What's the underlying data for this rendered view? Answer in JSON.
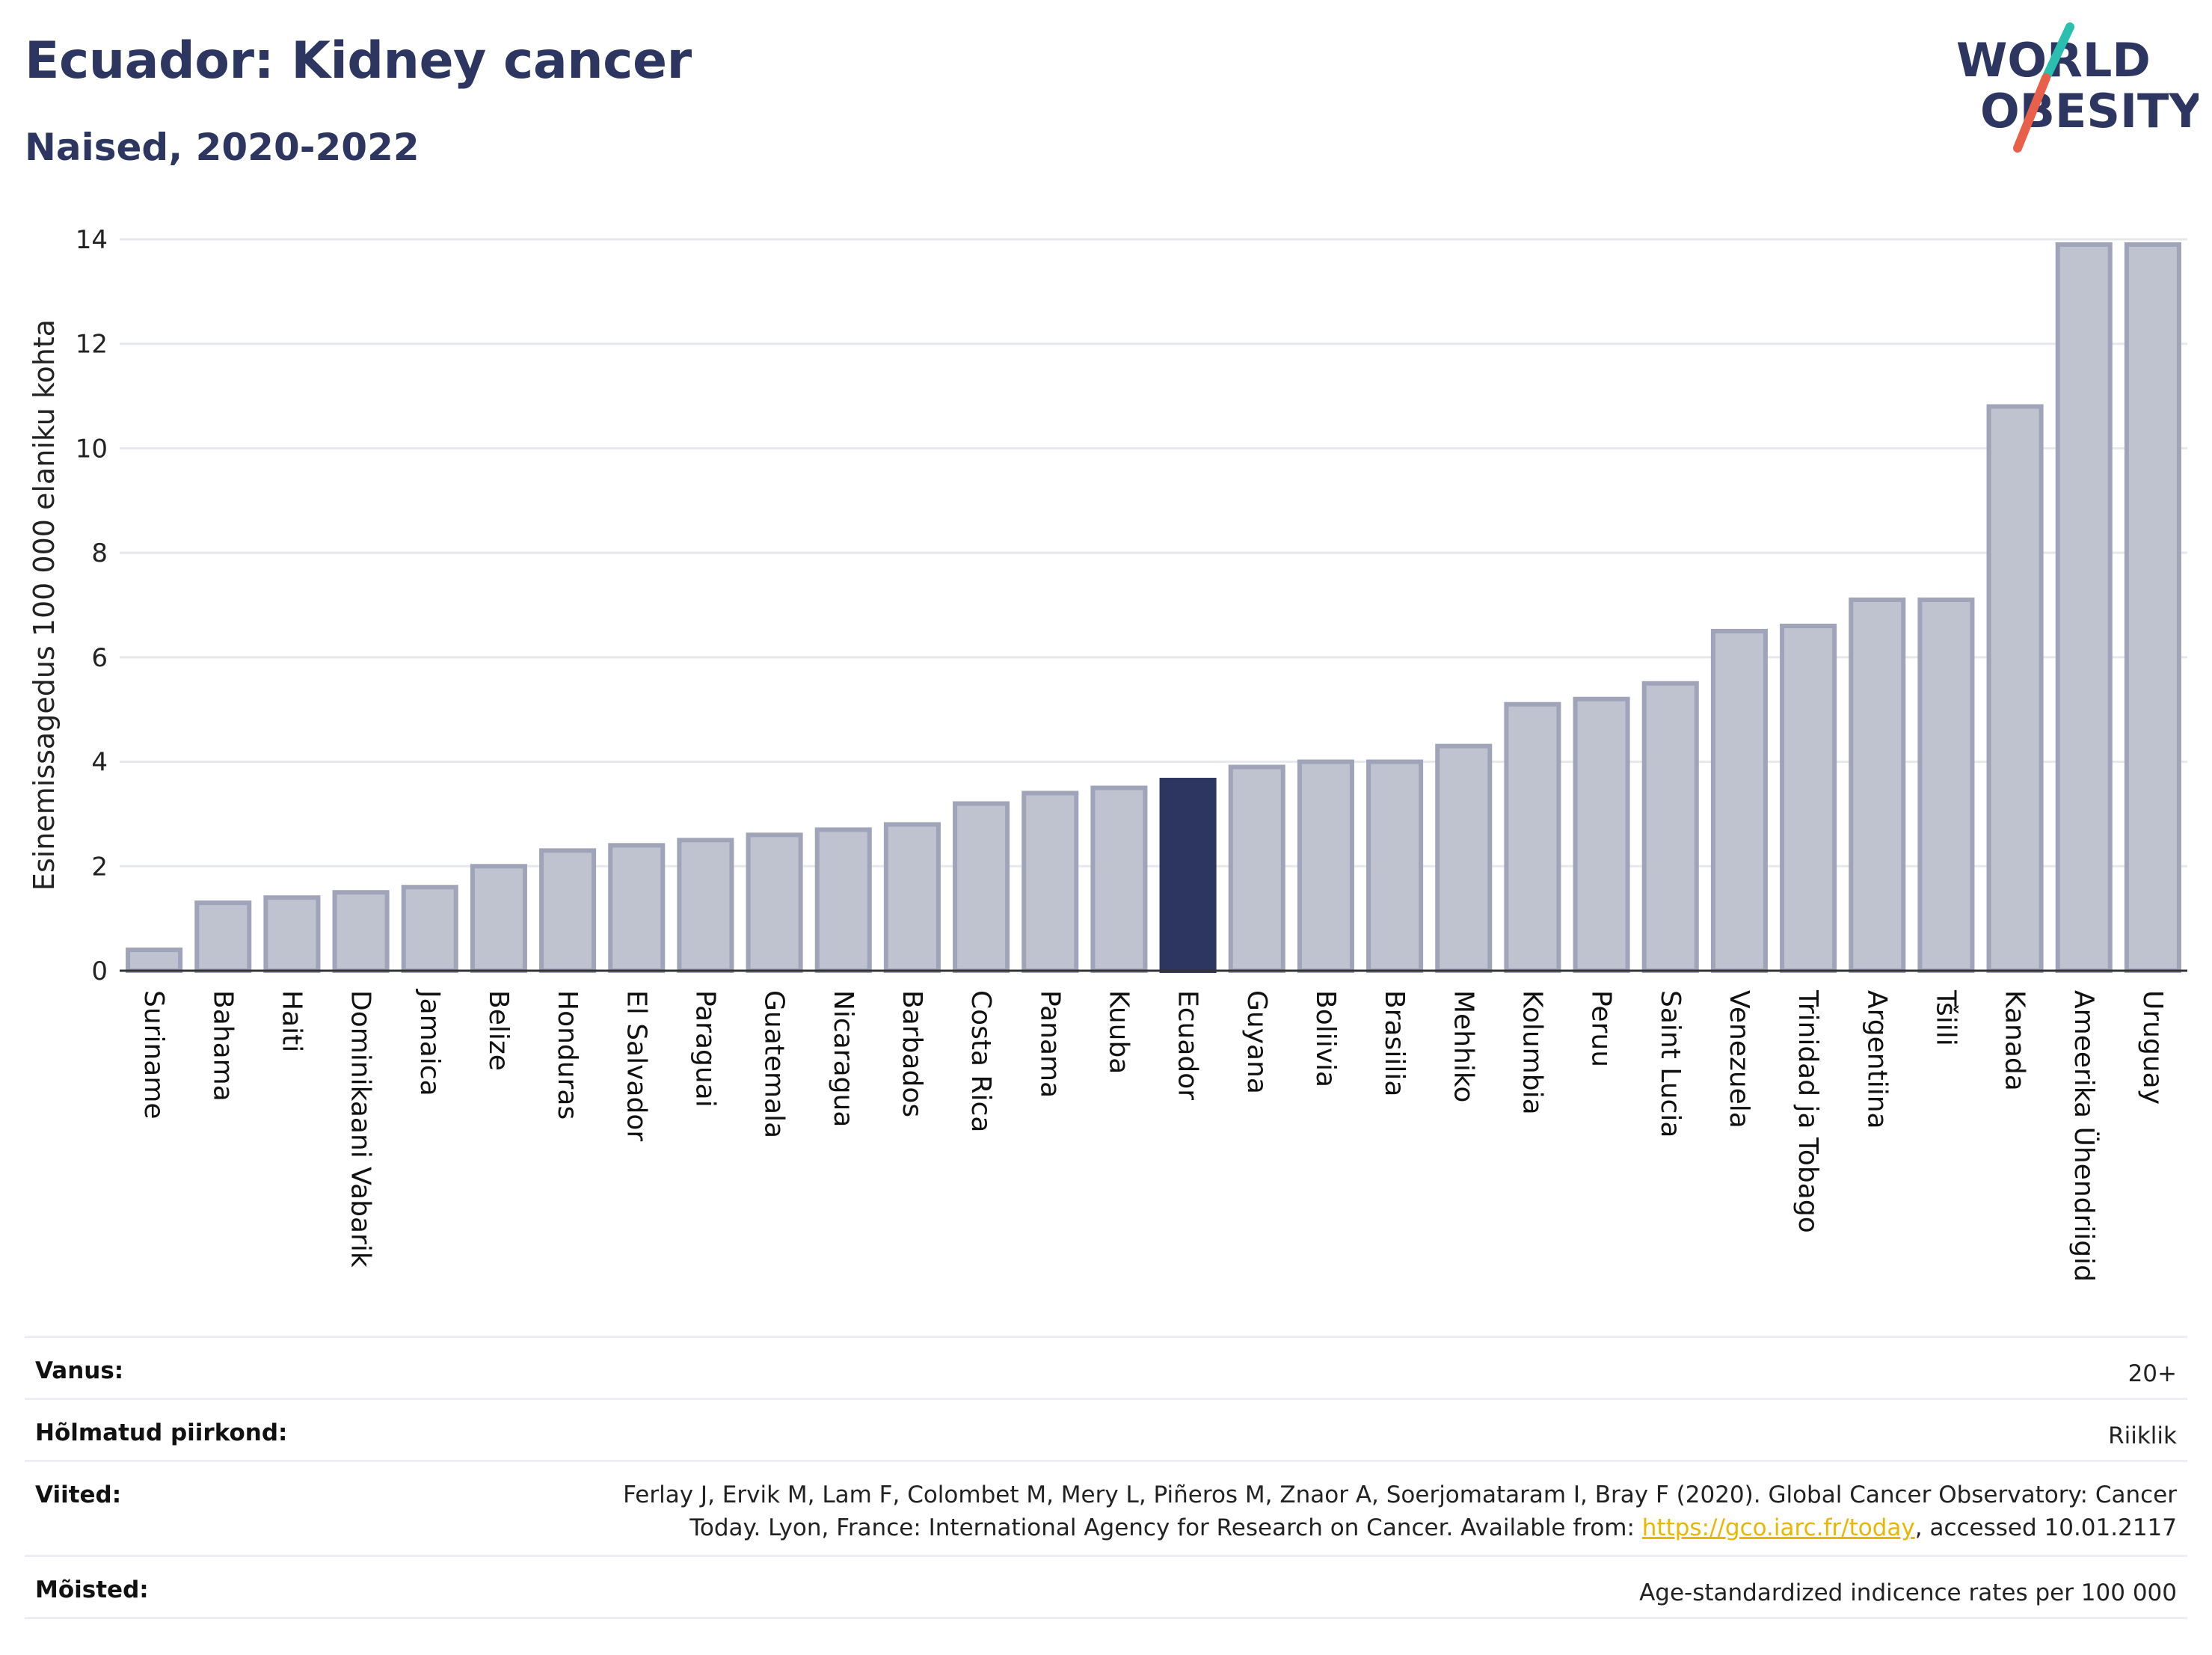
{
  "header": {
    "title": "Ecuador: Kidney cancer",
    "subtitle": "Naised, 2020-2022"
  },
  "logo": {
    "line1": "WORLD",
    "line2": "OBESITY",
    "slash_colors": [
      "#2bbfb0",
      "#e8604a"
    ],
    "text_color": "#2d3660"
  },
  "chart_data": {
    "type": "bar",
    "ylabel": "Esinemissagedus 100 000 elaniku kohta",
    "xlabel": "",
    "ylim": [
      0,
      14
    ],
    "yticks": [
      0,
      2,
      4,
      6,
      8,
      10,
      12,
      14
    ],
    "grid": true,
    "highlight": "Ecuador",
    "colors": {
      "bar": "#bfc3d0",
      "bar_border": "#9fa4b8",
      "highlight": "#2d3660",
      "grid": "#e6e8ee"
    },
    "categories": [
      "Suriname",
      "Bahama",
      "Haiti",
      "Dominikaani Vabarik",
      "Jamaica",
      "Belize",
      "Honduras",
      "El Salvador",
      "Paraguai",
      "Guatemala",
      "Nicaragua",
      "Barbados",
      "Costa Rica",
      "Panama",
      "Kuuba",
      "Ecuador",
      "Guyana",
      "Boliivia",
      "Brasiilia",
      "Mehhiko",
      "Kolumbia",
      "Peruu",
      "Saint Lucia",
      "Venezuela",
      "Trinidad ja Tobago",
      "Argentiina",
      "Tšiili",
      "Kanada",
      "Ameerika Ühendriigid",
      "Uruguay"
    ],
    "values": [
      0.4,
      1.3,
      1.4,
      1.5,
      1.6,
      2.0,
      2.3,
      2.4,
      2.5,
      2.6,
      2.7,
      2.8,
      3.2,
      3.4,
      3.5,
      3.65,
      3.9,
      4.0,
      4.0,
      4.3,
      5.1,
      5.2,
      5.5,
      6.5,
      6.6,
      7.1,
      7.1,
      10.8,
      13.9,
      13.9
    ]
  },
  "meta": {
    "rows": [
      {
        "label": "Vanus:",
        "value": "20+"
      },
      {
        "label": "Hõlmatud piirkond:",
        "value": "Riiklik"
      },
      {
        "label": "Viited:",
        "value_pre": "Ferlay J, Ervik M, Lam F, Colombet M, Mery L, Piñeros M, Znaor A, Soerjomataram I, Bray F (2020). Global Cancer Observatory: Cancer Today. Lyon, France: International Agency for Research on Cancer. Available from: ",
        "link": "https://gco.iarc.fr/today",
        "value_post": ", accessed 10.01.2117"
      },
      {
        "label": "Mõisted:",
        "value": "Age-standardized indicence rates per 100 000"
      }
    ]
  }
}
